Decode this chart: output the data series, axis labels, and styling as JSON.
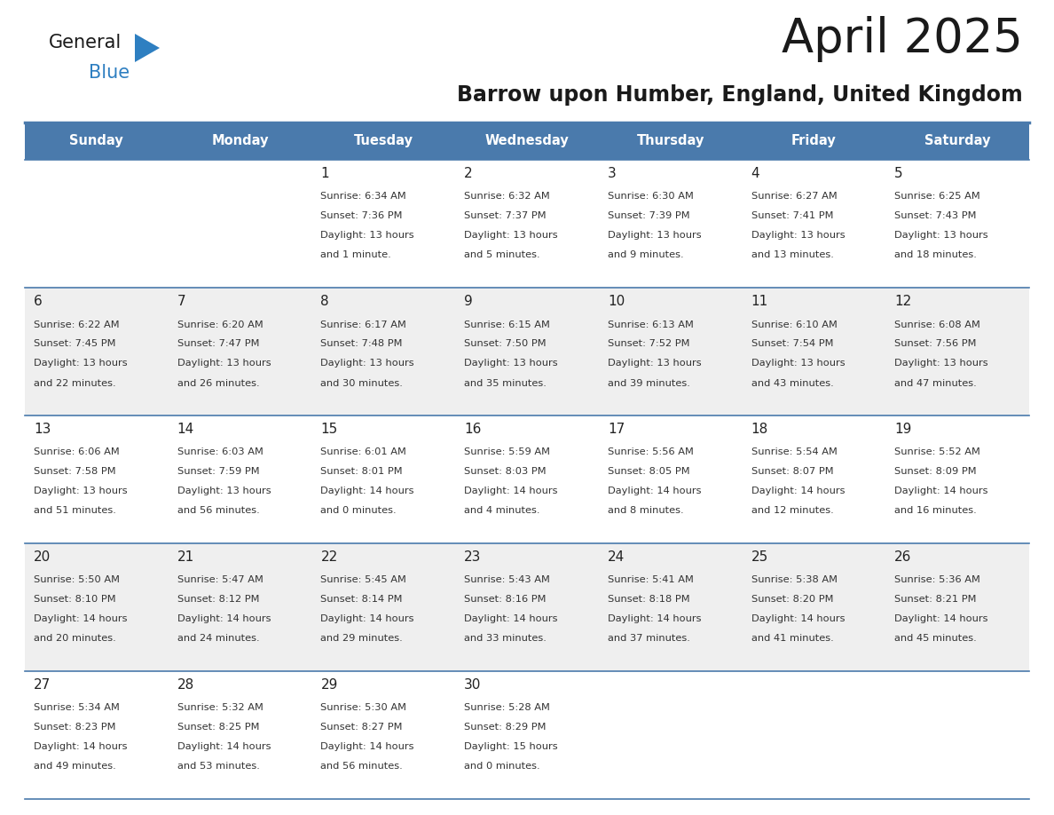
{
  "title": "April 2025",
  "subtitle": "Barrow upon Humber, England, United Kingdom",
  "days_of_week": [
    "Sunday",
    "Monday",
    "Tuesday",
    "Wednesday",
    "Thursday",
    "Friday",
    "Saturday"
  ],
  "header_bg": "#4a7aac",
  "header_text": "#ffffff",
  "cell_bg_odd": "#efefef",
  "cell_bg_even": "#ffffff",
  "cell_text": "#333333",
  "day_num_color": "#222222",
  "border_color": "#4a7aac",
  "logo_black": "#1a1a1a",
  "logo_blue": "#2e7fc1",
  "tri_color": "#2e7fc1",
  "weeks": [
    [
      {
        "day": "",
        "sunrise": "",
        "sunset": "",
        "daylight": ""
      },
      {
        "day": "",
        "sunrise": "",
        "sunset": "",
        "daylight": ""
      },
      {
        "day": "1",
        "sunrise": "Sunrise: 6:34 AM",
        "sunset": "Sunset: 7:36 PM",
        "daylight": "Daylight: 13 hours\nand 1 minute."
      },
      {
        "day": "2",
        "sunrise": "Sunrise: 6:32 AM",
        "sunset": "Sunset: 7:37 PM",
        "daylight": "Daylight: 13 hours\nand 5 minutes."
      },
      {
        "day": "3",
        "sunrise": "Sunrise: 6:30 AM",
        "sunset": "Sunset: 7:39 PM",
        "daylight": "Daylight: 13 hours\nand 9 minutes."
      },
      {
        "day": "4",
        "sunrise": "Sunrise: 6:27 AM",
        "sunset": "Sunset: 7:41 PM",
        "daylight": "Daylight: 13 hours\nand 13 minutes."
      },
      {
        "day": "5",
        "sunrise": "Sunrise: 6:25 AM",
        "sunset": "Sunset: 7:43 PM",
        "daylight": "Daylight: 13 hours\nand 18 minutes."
      }
    ],
    [
      {
        "day": "6",
        "sunrise": "Sunrise: 6:22 AM",
        "sunset": "Sunset: 7:45 PM",
        "daylight": "Daylight: 13 hours\nand 22 minutes."
      },
      {
        "day": "7",
        "sunrise": "Sunrise: 6:20 AM",
        "sunset": "Sunset: 7:47 PM",
        "daylight": "Daylight: 13 hours\nand 26 minutes."
      },
      {
        "day": "8",
        "sunrise": "Sunrise: 6:17 AM",
        "sunset": "Sunset: 7:48 PM",
        "daylight": "Daylight: 13 hours\nand 30 minutes."
      },
      {
        "day": "9",
        "sunrise": "Sunrise: 6:15 AM",
        "sunset": "Sunset: 7:50 PM",
        "daylight": "Daylight: 13 hours\nand 35 minutes."
      },
      {
        "day": "10",
        "sunrise": "Sunrise: 6:13 AM",
        "sunset": "Sunset: 7:52 PM",
        "daylight": "Daylight: 13 hours\nand 39 minutes."
      },
      {
        "day": "11",
        "sunrise": "Sunrise: 6:10 AM",
        "sunset": "Sunset: 7:54 PM",
        "daylight": "Daylight: 13 hours\nand 43 minutes."
      },
      {
        "day": "12",
        "sunrise": "Sunrise: 6:08 AM",
        "sunset": "Sunset: 7:56 PM",
        "daylight": "Daylight: 13 hours\nand 47 minutes."
      }
    ],
    [
      {
        "day": "13",
        "sunrise": "Sunrise: 6:06 AM",
        "sunset": "Sunset: 7:58 PM",
        "daylight": "Daylight: 13 hours\nand 51 minutes."
      },
      {
        "day": "14",
        "sunrise": "Sunrise: 6:03 AM",
        "sunset": "Sunset: 7:59 PM",
        "daylight": "Daylight: 13 hours\nand 56 minutes."
      },
      {
        "day": "15",
        "sunrise": "Sunrise: 6:01 AM",
        "sunset": "Sunset: 8:01 PM",
        "daylight": "Daylight: 14 hours\nand 0 minutes."
      },
      {
        "day": "16",
        "sunrise": "Sunrise: 5:59 AM",
        "sunset": "Sunset: 8:03 PM",
        "daylight": "Daylight: 14 hours\nand 4 minutes."
      },
      {
        "day": "17",
        "sunrise": "Sunrise: 5:56 AM",
        "sunset": "Sunset: 8:05 PM",
        "daylight": "Daylight: 14 hours\nand 8 minutes."
      },
      {
        "day": "18",
        "sunrise": "Sunrise: 5:54 AM",
        "sunset": "Sunset: 8:07 PM",
        "daylight": "Daylight: 14 hours\nand 12 minutes."
      },
      {
        "day": "19",
        "sunrise": "Sunrise: 5:52 AM",
        "sunset": "Sunset: 8:09 PM",
        "daylight": "Daylight: 14 hours\nand 16 minutes."
      }
    ],
    [
      {
        "day": "20",
        "sunrise": "Sunrise: 5:50 AM",
        "sunset": "Sunset: 8:10 PM",
        "daylight": "Daylight: 14 hours\nand 20 minutes."
      },
      {
        "day": "21",
        "sunrise": "Sunrise: 5:47 AM",
        "sunset": "Sunset: 8:12 PM",
        "daylight": "Daylight: 14 hours\nand 24 minutes."
      },
      {
        "day": "22",
        "sunrise": "Sunrise: 5:45 AM",
        "sunset": "Sunset: 8:14 PM",
        "daylight": "Daylight: 14 hours\nand 29 minutes."
      },
      {
        "day": "23",
        "sunrise": "Sunrise: 5:43 AM",
        "sunset": "Sunset: 8:16 PM",
        "daylight": "Daylight: 14 hours\nand 33 minutes."
      },
      {
        "day": "24",
        "sunrise": "Sunrise: 5:41 AM",
        "sunset": "Sunset: 8:18 PM",
        "daylight": "Daylight: 14 hours\nand 37 minutes."
      },
      {
        "day": "25",
        "sunrise": "Sunrise: 5:38 AM",
        "sunset": "Sunset: 8:20 PM",
        "daylight": "Daylight: 14 hours\nand 41 minutes."
      },
      {
        "day": "26",
        "sunrise": "Sunrise: 5:36 AM",
        "sunset": "Sunset: 8:21 PM",
        "daylight": "Daylight: 14 hours\nand 45 minutes."
      }
    ],
    [
      {
        "day": "27",
        "sunrise": "Sunrise: 5:34 AM",
        "sunset": "Sunset: 8:23 PM",
        "daylight": "Daylight: 14 hours\nand 49 minutes."
      },
      {
        "day": "28",
        "sunrise": "Sunrise: 5:32 AM",
        "sunset": "Sunset: 8:25 PM",
        "daylight": "Daylight: 14 hours\nand 53 minutes."
      },
      {
        "day": "29",
        "sunrise": "Sunrise: 5:30 AM",
        "sunset": "Sunset: 8:27 PM",
        "daylight": "Daylight: 14 hours\nand 56 minutes."
      },
      {
        "day": "30",
        "sunrise": "Sunrise: 5:28 AM",
        "sunset": "Sunset: 8:29 PM",
        "daylight": "Daylight: 15 hours\nand 0 minutes."
      },
      {
        "day": "",
        "sunrise": "",
        "sunset": "",
        "daylight": ""
      },
      {
        "day": "",
        "sunrise": "",
        "sunset": "",
        "daylight": ""
      },
      {
        "day": "",
        "sunrise": "",
        "sunset": "",
        "daylight": ""
      }
    ]
  ]
}
